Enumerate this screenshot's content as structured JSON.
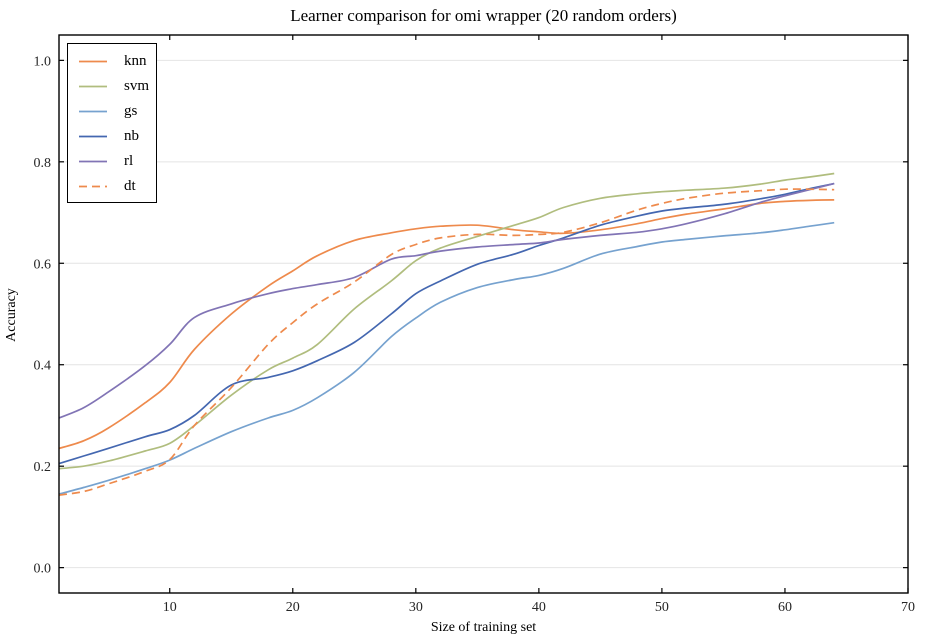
{
  "title": "Learner comparison for omi wrapper (20 random orders)",
  "colors": {
    "background": "#ffffff",
    "grid": "#e4e4e4",
    "axis": "#000000",
    "tick_text": "#262626"
  },
  "chart_data": {
    "type": "line",
    "title": "Learner comparison for omi wrapper (20 random orders)",
    "xlabel": "Size of training set",
    "ylabel": "Accuracy",
    "xlim": [
      1,
      70
    ],
    "ylim": [
      -0.05,
      1.05
    ],
    "xticks": [
      10,
      20,
      30,
      40,
      50,
      60,
      70
    ],
    "yticks": [
      0.0,
      0.2,
      0.4,
      0.6,
      0.8,
      1.0
    ],
    "grid": "horizontal-only",
    "legend_position": "upper-left",
    "x": [
      1,
      3,
      5,
      8,
      10,
      12,
      15,
      18,
      20,
      22,
      25,
      28,
      30,
      32,
      35,
      38,
      40,
      42,
      45,
      48,
      50,
      52,
      55,
      58,
      60,
      62,
      64
    ],
    "series": [
      {
        "name": "knn",
        "color": "#ee8a4c",
        "style": "solid",
        "values": [
          0.235,
          0.25,
          0.275,
          0.325,
          0.365,
          0.43,
          0.5,
          0.555,
          0.585,
          0.615,
          0.645,
          0.66,
          0.668,
          0.673,
          0.675,
          0.666,
          0.662,
          0.659,
          0.666,
          0.678,
          0.688,
          0.697,
          0.707,
          0.718,
          0.722,
          0.724,
          0.725
        ]
      },
      {
        "name": "svm",
        "color": "#b0bd7e",
        "style": "solid",
        "values": [
          0.195,
          0.2,
          0.21,
          0.23,
          0.245,
          0.28,
          0.34,
          0.39,
          0.413,
          0.44,
          0.51,
          0.565,
          0.605,
          0.63,
          0.653,
          0.675,
          0.69,
          0.71,
          0.728,
          0.737,
          0.741,
          0.744,
          0.748,
          0.756,
          0.764,
          0.77,
          0.777
        ]
      },
      {
        "name": "gs",
        "color": "#76a2cf",
        "style": "solid",
        "values": [
          0.145,
          0.158,
          0.172,
          0.195,
          0.212,
          0.235,
          0.268,
          0.295,
          0.31,
          0.335,
          0.385,
          0.455,
          0.492,
          0.523,
          0.552,
          0.568,
          0.576,
          0.59,
          0.618,
          0.633,
          0.642,
          0.647,
          0.654,
          0.66,
          0.666,
          0.673,
          0.68
        ]
      },
      {
        "name": "nb",
        "color": "#4467b0",
        "style": "solid",
        "values": [
          0.205,
          0.22,
          0.235,
          0.258,
          0.272,
          0.3,
          0.36,
          0.375,
          0.388,
          0.408,
          0.444,
          0.5,
          0.54,
          0.565,
          0.598,
          0.618,
          0.635,
          0.65,
          0.675,
          0.693,
          0.703,
          0.709,
          0.716,
          0.727,
          0.736,
          0.747,
          0.757
        ]
      },
      {
        "name": "rl",
        "color": "#8174b5",
        "style": "solid",
        "values": [
          0.295,
          0.315,
          0.346,
          0.398,
          0.44,
          0.493,
          0.52,
          0.54,
          0.55,
          0.558,
          0.572,
          0.608,
          0.615,
          0.624,
          0.632,
          0.637,
          0.64,
          0.647,
          0.655,
          0.661,
          0.668,
          0.678,
          0.697,
          0.72,
          0.733,
          0.745,
          0.757
        ]
      },
      {
        "name": "dt",
        "color": "#ee8a4c",
        "style": "dashed",
        "values": [
          0.143,
          0.15,
          0.165,
          0.19,
          0.213,
          0.28,
          0.355,
          0.44,
          0.483,
          0.52,
          0.563,
          0.617,
          0.637,
          0.65,
          0.657,
          0.655,
          0.657,
          0.661,
          0.68,
          0.705,
          0.718,
          0.728,
          0.738,
          0.743,
          0.746,
          0.746,
          0.745
        ]
      }
    ]
  }
}
